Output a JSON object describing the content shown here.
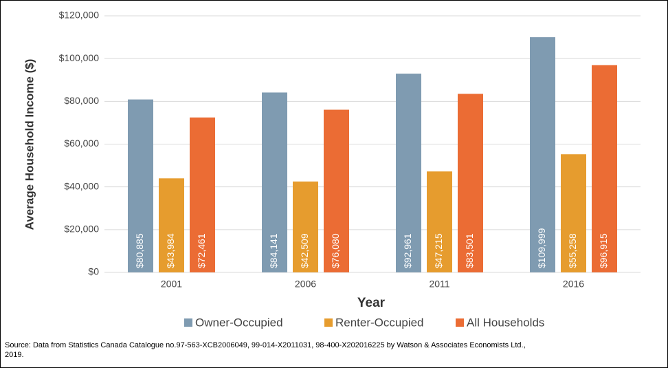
{
  "chart_data": {
    "type": "bar",
    "xlabel": "Year",
    "ylabel": "Average Household Income ($)",
    "categories": [
      "2001",
      "2006",
      "2011",
      "2016"
    ],
    "series": [
      {
        "name": "Owner-Occupied",
        "color": "#7f9bb1",
        "values": [
          80885,
          84141,
          92961,
          109999
        ],
        "value_labels": [
          "$80,885",
          "$84,141",
          "$92,961",
          "$109,999"
        ]
      },
      {
        "name": "Renter-Occupied",
        "color": "#e69c2e",
        "values": [
          43984,
          42509,
          47215,
          55258
        ],
        "value_labels": [
          "$43,984",
          "$42,509",
          "$47,215",
          "$55,258"
        ]
      },
      {
        "name": "All Households",
        "color": "#eb6c34",
        "values": [
          72461,
          76080,
          83501,
          96915
        ],
        "value_labels": [
          "$72,461",
          "$76,080",
          "$83,501",
          "$96,915"
        ]
      }
    ],
    "ylim": [
      0,
      120000
    ],
    "yticks": [
      {
        "value": 0,
        "label": "$0"
      },
      {
        "value": 20000,
        "label": "$20,000"
      },
      {
        "value": 40000,
        "label": "$40,000"
      },
      {
        "value": 60000,
        "label": "$60,000"
      },
      {
        "value": 80000,
        "label": "$80,000"
      },
      {
        "value": 100000,
        "label": "$100,000"
      },
      {
        "value": 120000,
        "label": "$120,000"
      }
    ],
    "grid": true,
    "legend": "bottom",
    "source": "Source:  Data from Statistics Canada Catalogue no.97-563-XCB2006049, 99-014-X2011031, 98-400-X202016225 by Watson & Associates Economists Ltd., 2019."
  }
}
